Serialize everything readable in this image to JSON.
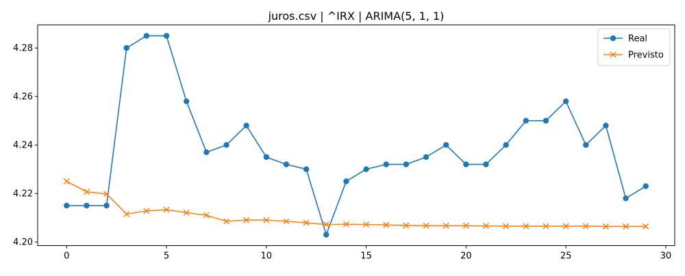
{
  "chart_data": {
    "type": "line",
    "title": "juros.csv | ^IRX | ARIMA(5, 1, 1)",
    "xlabel": "",
    "ylabel": "",
    "xlim": [
      -1.45,
      30.45
    ],
    "ylim": [
      4.1985,
      4.2895
    ],
    "x_ticks": [
      0,
      5,
      10,
      15,
      20,
      25,
      30
    ],
    "y_ticks": [
      4.2,
      4.22,
      4.24,
      4.26,
      4.28
    ],
    "grid": false,
    "legend_position": "top-right",
    "x": [
      0,
      1,
      2,
      3,
      4,
      5,
      6,
      7,
      8,
      9,
      10,
      11,
      12,
      13,
      14,
      15,
      16,
      17,
      18,
      19,
      20,
      21,
      22,
      23,
      24,
      25,
      26,
      27,
      28,
      29
    ],
    "series": [
      {
        "name": "Real",
        "color": "#1f77b4",
        "marker": "circle",
        "values": [
          4.215,
          4.215,
          4.215,
          4.28,
          4.285,
          4.285,
          4.258,
          4.237,
          4.24,
          4.248,
          4.235,
          4.232,
          4.23,
          4.203,
          4.225,
          4.23,
          4.232,
          4.232,
          4.235,
          4.24,
          4.232,
          4.232,
          4.24,
          4.25,
          4.25,
          4.258,
          4.24,
          4.248,
          4.218,
          4.223
        ]
      },
      {
        "name": "Previsto",
        "color": "#ff7f0e",
        "marker": "x",
        "values": [
          4.225,
          4.2207,
          4.2198,
          4.2115,
          4.2128,
          4.2133,
          4.2121,
          4.211,
          4.2085,
          4.209,
          4.209,
          4.2085,
          4.2079,
          4.2072,
          4.2073,
          4.2072,
          4.207,
          4.2068,
          4.2067,
          4.2067,
          4.2067,
          4.2066,
          4.2065,
          4.2065,
          4.2065,
          4.2065,
          4.2065,
          4.2064,
          4.2064,
          4.2064
        ]
      }
    ]
  }
}
